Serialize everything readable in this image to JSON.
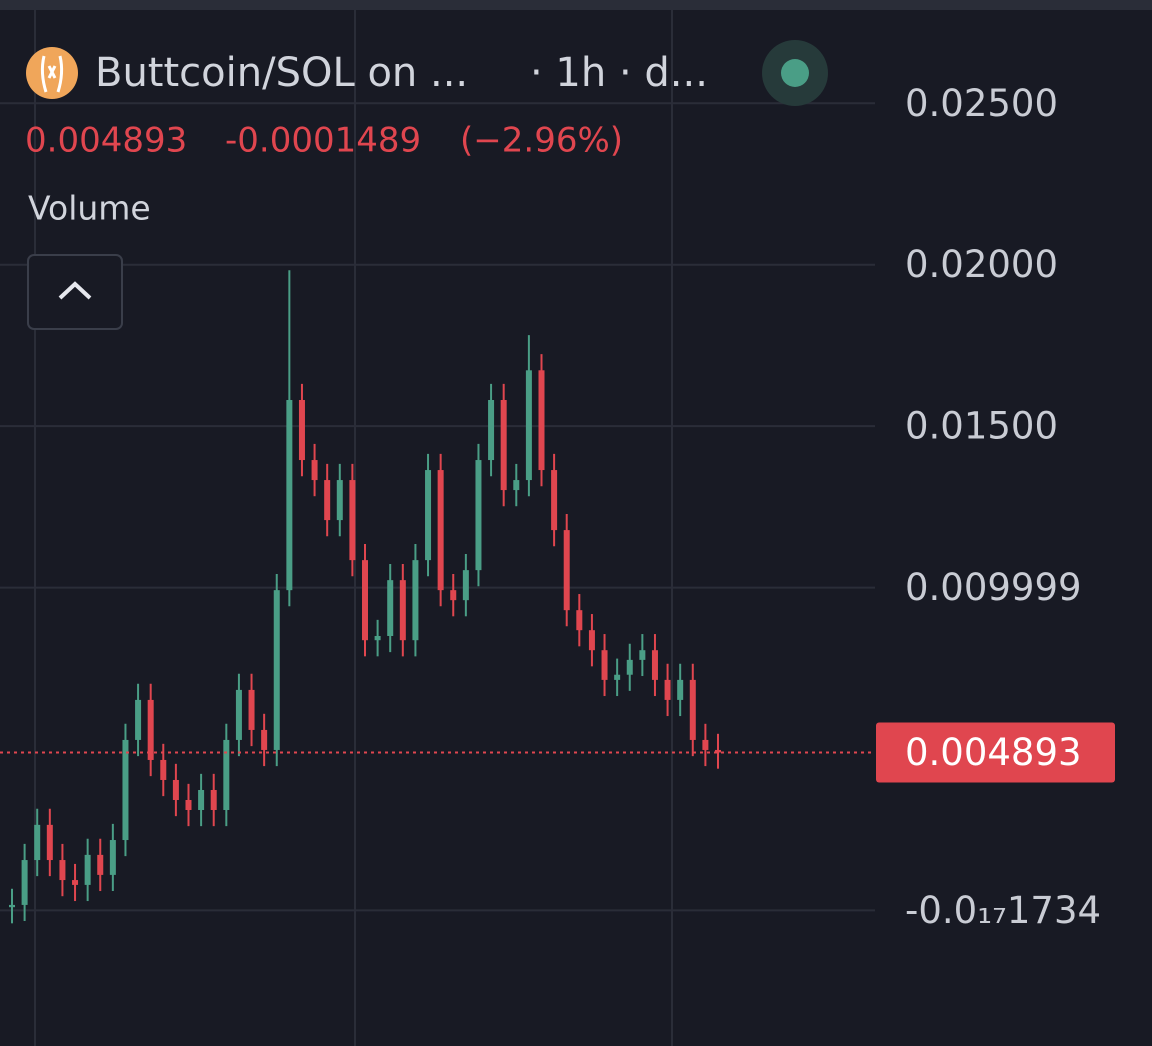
{
  "chart_data": {
    "type": "candlestick",
    "title": "Buttcoin/SOL on ...",
    "interval": "· 1h · d...",
    "last_price": 0.004893,
    "change": -0.0001489,
    "change_pct": "(−2.96%)",
    "indicator": "Volume",
    "up_color": "#4a9e86",
    "down_color": "#e0464f",
    "ylim": [
      -0.0042,
      0.0282
    ],
    "yticks": [
      {
        "value": -1.734e-18,
        "label": "-0.0₁₇1734"
      },
      0.009999,
      {
        "value": 0.015,
        "label": "0.01500"
      },
      {
        "value": 0.02,
        "label": "0.02000"
      },
      {
        "value": 0.025,
        "label": "0.02500"
      }
    ],
    "grid": true,
    "open": [
      0.0001,
      0.00017,
      0.00156,
      0.00265,
      0.00156,
      0.00094,
      0.00079,
      0.00172,
      0.0011,
      0.00218,
      0.00528,
      0.00652,
      0.00466,
      0.00404,
      0.00342,
      0.00311,
      0.00373,
      0.00311,
      0.00528,
      0.00683,
      0.00559,
      0.00497,
      0.00992,
      0.01581,
      0.01395,
      0.01333,
      0.01209,
      0.01333,
      0.01085,
      0.00837,
      0.0085,
      0.01023,
      0.00837,
      0.01085,
      0.01364,
      0.00992,
      0.00961,
      0.01054,
      0.01395,
      0.01581,
      0.01302,
      0.01333,
      0.01673,
      0.01364,
      0.01178,
      0.0093,
      0.00868,
      0.00806,
      0.00714,
      0.0073,
      0.00776,
      0.00806,
      0.00714,
      0.00652,
      0.00714,
      0.00528,
      0.00497
    ],
    "high": [
      0.00067,
      0.00206,
      0.00315,
      0.00315,
      0.00206,
      0.00144,
      0.00222,
      0.00222,
      0.00268,
      0.00578,
      0.00702,
      0.00702,
      0.00516,
      0.00454,
      0.00392,
      0.00423,
      0.00423,
      0.00578,
      0.00733,
      0.00733,
      0.00609,
      0.01042,
      0.01983,
      0.01631,
      0.01445,
      0.01383,
      0.01383,
      0.01383,
      0.01135,
      0.009,
      0.01073,
      0.01073,
      0.01135,
      0.01414,
      0.01414,
      0.01042,
      0.01104,
      0.01445,
      0.01631,
      0.01631,
      0.01383,
      0.01782,
      0.01723,
      0.01414,
      0.01228,
      0.0098,
      0.00918,
      0.00856,
      0.0078,
      0.00826,
      0.00856,
      0.00856,
      0.00764,
      0.00764,
      0.00764,
      0.00578,
      0.00547
    ],
    "low": [
      -0.0004,
      -0.00033,
      0.00106,
      0.00106,
      0.00044,
      0.00029,
      0.00029,
      0.0006,
      0.0006,
      0.00168,
      0.00478,
      0.00416,
      0.00354,
      0.00292,
      0.00261,
      0.00261,
      0.00261,
      0.00261,
      0.00478,
      0.00509,
      0.00447,
      0.00447,
      0.00942,
      0.01345,
      0.01283,
      0.01159,
      0.01159,
      0.01035,
      0.00787,
      0.00787,
      0.008,
      0.00787,
      0.00787,
      0.01035,
      0.00942,
      0.00911,
      0.00911,
      0.01004,
      0.01345,
      0.01252,
      0.01252,
      0.01283,
      0.01314,
      0.01128,
      0.0088,
      0.00818,
      0.00756,
      0.00664,
      0.00664,
      0.0068,
      0.00726,
      0.00664,
      0.00602,
      0.00602,
      0.00478,
      0.00447,
      0.00439
    ],
    "close": [
      0.00017,
      0.00156,
      0.00265,
      0.00156,
      0.00094,
      0.00079,
      0.00172,
      0.0011,
      0.00218,
      0.00528,
      0.00652,
      0.00466,
      0.00404,
      0.00342,
      0.00311,
      0.00373,
      0.00311,
      0.00528,
      0.00683,
      0.00559,
      0.00497,
      0.00992,
      0.01581,
      0.01395,
      0.01333,
      0.01209,
      0.01333,
      0.01085,
      0.00837,
      0.0085,
      0.01023,
      0.00837,
      0.01085,
      0.01364,
      0.00992,
      0.00961,
      0.01054,
      0.01395,
      0.01581,
      0.01302,
      0.01333,
      0.01673,
      0.01364,
      0.01178,
      0.0093,
      0.00868,
      0.00806,
      0.00714,
      0.0073,
      0.00776,
      0.00806,
      0.00714,
      0.00652,
      0.00714,
      0.00528,
      0.00497,
      0.004893
    ]
  }
}
